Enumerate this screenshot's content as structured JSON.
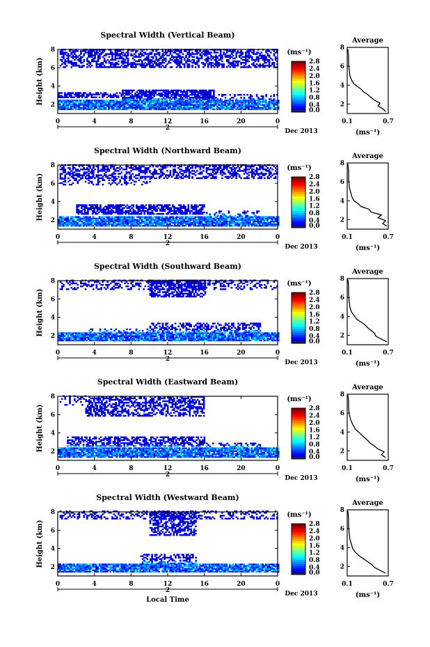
{
  "chart_data": [
    {
      "type": "heatmap",
      "title": "Spectral Width (Vertical Beam)",
      "ylabel": "Height (km)",
      "xticks": [
        "0",
        "4",
        "8",
        "12",
        "16",
        "20",
        "0"
      ],
      "xlim": [
        0,
        24
      ],
      "yticks": [
        "2",
        "4",
        "6",
        "8"
      ],
      "ylim": [
        1,
        8
      ],
      "date_day": "2",
      "date_label": "Dec 2013",
      "colorbar": {
        "unit": "(ms⁻¹)",
        "ticks": [
          "0.0",
          "0.4",
          "0.8",
          "1.2",
          "1.6",
          "2.0",
          "2.4",
          "2.8"
        ]
      },
      "profile": {
        "title": "Average",
        "xticks": [
          "0.1",
          "0.7"
        ],
        "xlim": [
          0.1,
          0.7
        ],
        "xlabel": "(ms⁻¹)",
        "yticks": [
          "2",
          "4",
          "6",
          "8"
        ],
        "ylim": [
          1,
          8
        ],
        "points": [
          [
            0.66,
            1.2
          ],
          [
            0.62,
            1.5
          ],
          [
            0.55,
            1.8
          ],
          [
            0.58,
            2.1
          ],
          [
            0.5,
            2.4
          ],
          [
            0.45,
            2.7
          ],
          [
            0.4,
            3.0
          ],
          [
            0.34,
            3.3
          ],
          [
            0.3,
            3.6
          ],
          [
            0.24,
            3.9
          ],
          [
            0.19,
            4.2
          ],
          [
            0.16,
            4.6
          ],
          [
            0.14,
            5.0
          ],
          [
            0.13,
            5.6
          ],
          [
            0.12,
            6.2
          ],
          [
            0.12,
            7.0
          ],
          [
            0.11,
            7.8
          ]
        ]
      },
      "texture": [
        {
          "t0": 0.2,
          "t1": 24,
          "h0": 6.0,
          "h1": 8.0,
          "d": 0.55
        },
        {
          "t0": 0.0,
          "t1": 24,
          "h0": 1.4,
          "h1": 2.5,
          "d": 0.92
        },
        {
          "t0": 0.0,
          "t1": 7.0,
          "h0": 2.7,
          "h1": 3.2,
          "d": 0.65
        },
        {
          "t0": 7.0,
          "t1": 17.0,
          "h0": 2.5,
          "h1": 3.5,
          "d": 0.75
        },
        {
          "t0": 17.0,
          "t1": 24,
          "h0": 2.5,
          "h1": 3.0,
          "d": 0.3
        }
      ]
    },
    {
      "type": "heatmap",
      "title": "Spectral Width (Northward Beam)",
      "ylabel": "Height (km)",
      "xticks": [
        "0",
        "4",
        "8",
        "12",
        "16",
        "20",
        "0"
      ],
      "xlim": [
        0,
        24
      ],
      "yticks": [
        "2",
        "4",
        "6",
        "8"
      ],
      "ylim": [
        1,
        8
      ],
      "date_day": "2",
      "date_label": "Dec 2013",
      "colorbar": {
        "unit": "(ms⁻¹)",
        "ticks": [
          "0.0",
          "0.4",
          "0.8",
          "1.2",
          "1.6",
          "2.0",
          "2.4",
          "2.8"
        ]
      },
      "profile": {
        "title": "Average",
        "xticks": [
          "0.1",
          "0.7"
        ],
        "xlim": [
          0.1,
          0.7
        ],
        "xlabel": "(ms⁻¹)",
        "yticks": [
          "2",
          "4",
          "6",
          "8"
        ],
        "ylim": [
          1,
          8
        ],
        "points": [
          [
            0.68,
            1.3
          ],
          [
            0.62,
            1.6
          ],
          [
            0.66,
            1.9
          ],
          [
            0.55,
            2.2
          ],
          [
            0.6,
            2.5
          ],
          [
            0.45,
            2.8
          ],
          [
            0.42,
            3.1
          ],
          [
            0.3,
            3.4
          ],
          [
            0.26,
            3.7
          ],
          [
            0.2,
            4.0
          ],
          [
            0.17,
            4.4
          ],
          [
            0.15,
            4.9
          ],
          [
            0.13,
            5.5
          ],
          [
            0.12,
            6.3
          ],
          [
            0.12,
            7.2
          ],
          [
            0.11,
            7.9
          ]
        ]
      },
      "texture": [
        {
          "t0": 0.2,
          "t1": 24,
          "h0": 6.5,
          "h1": 8.0,
          "d": 0.5
        },
        {
          "t0": 0.2,
          "t1": 10.0,
          "h0": 5.8,
          "h1": 6.5,
          "d": 0.25
        },
        {
          "t0": 0.0,
          "t1": 24,
          "h0": 1.3,
          "h1": 2.4,
          "d": 0.92
        },
        {
          "t0": 2.0,
          "t1": 16.0,
          "h0": 2.6,
          "h1": 3.6,
          "d": 0.7
        },
        {
          "t0": 16.0,
          "t1": 22.0,
          "h0": 2.4,
          "h1": 2.9,
          "d": 0.3
        }
      ]
    },
    {
      "type": "heatmap",
      "title": "Spectral Width (Southward Beam)",
      "ylabel": "Height (km)",
      "xticks": [
        "0",
        "4",
        "8",
        "12",
        "16",
        "20",
        "0"
      ],
      "xlim": [
        0,
        24
      ],
      "yticks": [
        "2",
        "4",
        "6",
        "8"
      ],
      "ylim": [
        1,
        8
      ],
      "date_day": "2",
      "date_label": "Dec 2013",
      "colorbar": {
        "unit": "(ms⁻¹)",
        "ticks": [
          "0.0",
          "0.4",
          "0.8",
          "1.2",
          "1.6",
          "2.0",
          "2.4",
          "2.8"
        ]
      },
      "profile": {
        "title": "Average",
        "xticks": [
          "0.1",
          "0.7"
        ],
        "xlim": [
          0.1,
          0.7
        ],
        "xlabel": "(ms⁻¹)",
        "yticks": [
          "2",
          "4",
          "6",
          "8"
        ],
        "ylim": [
          1,
          8
        ],
        "points": [
          [
            0.68,
            1.3
          ],
          [
            0.6,
            1.6
          ],
          [
            0.52,
            1.9
          ],
          [
            0.5,
            2.2
          ],
          [
            0.45,
            2.5
          ],
          [
            0.4,
            2.8
          ],
          [
            0.36,
            3.1
          ],
          [
            0.3,
            3.4
          ],
          [
            0.24,
            3.7
          ],
          [
            0.2,
            4.1
          ],
          [
            0.16,
            4.5
          ],
          [
            0.14,
            5.0
          ],
          [
            0.13,
            5.6
          ],
          [
            0.12,
            6.3
          ],
          [
            0.12,
            7.1
          ],
          [
            0.11,
            7.9
          ]
        ]
      },
      "texture": [
        {
          "t0": 0.2,
          "t1": 24,
          "h0": 7.0,
          "h1": 8.0,
          "d": 0.35
        },
        {
          "t0": 10.0,
          "t1": 16.0,
          "h0": 6.2,
          "h1": 8.0,
          "d": 0.6
        },
        {
          "t0": 0.0,
          "t1": 24,
          "h0": 1.4,
          "h1": 2.3,
          "d": 0.92
        },
        {
          "t0": 10.0,
          "t1": 22.0,
          "h0": 2.3,
          "h1": 3.3,
          "d": 0.55
        },
        {
          "t0": 3.0,
          "t1": 10.0,
          "h0": 2.3,
          "h1": 2.7,
          "d": 0.3
        }
      ]
    },
    {
      "type": "heatmap",
      "title": "Spectral Width (Eastward Beam)",
      "ylabel": "Height (km)",
      "xticks": [
        "0",
        "4",
        "8",
        "12",
        "16",
        "20",
        "0"
      ],
      "xlim": [
        0,
        24
      ],
      "yticks": [
        "2",
        "4",
        "6",
        "8"
      ],
      "ylim": [
        1,
        8
      ],
      "date_day": "2",
      "date_label": "Dec 2013",
      "colorbar": {
        "unit": "(ms⁻¹)",
        "ticks": [
          "0.0",
          "0.4",
          "0.8",
          "1.2",
          "1.6",
          "2.0",
          "2.4",
          "2.8"
        ]
      },
      "profile": {
        "title": "Average",
        "xticks": [
          "0.1",
          "0.7"
        ],
        "xlim": [
          0.1,
          0.7
        ],
        "xlabel": "(ms⁻¹)",
        "yticks": [
          "2",
          "4",
          "6",
          "8"
        ],
        "ylim": [
          1,
          8
        ],
        "points": [
          [
            0.66,
            1.3
          ],
          [
            0.6,
            1.6
          ],
          [
            0.64,
            1.9
          ],
          [
            0.55,
            2.2
          ],
          [
            0.5,
            2.5
          ],
          [
            0.44,
            2.8
          ],
          [
            0.4,
            3.1
          ],
          [
            0.34,
            3.5
          ],
          [
            0.28,
            3.9
          ],
          [
            0.22,
            4.3
          ],
          [
            0.18,
            4.8
          ],
          [
            0.15,
            5.3
          ],
          [
            0.13,
            5.9
          ],
          [
            0.12,
            6.6
          ],
          [
            0.12,
            7.3
          ],
          [
            0.11,
            7.9
          ]
        ]
      },
      "texture": [
        {
          "t0": 3.0,
          "t1": 16.0,
          "h0": 5.8,
          "h1": 8.0,
          "d": 0.55
        },
        {
          "t0": 0.2,
          "t1": 3.0,
          "h0": 7.0,
          "h1": 8.0,
          "d": 0.2
        },
        {
          "t0": 0.0,
          "t1": 24,
          "h0": 1.3,
          "h1": 2.3,
          "d": 0.92
        },
        {
          "t0": 1.0,
          "t1": 16.0,
          "h0": 2.5,
          "h1": 3.5,
          "d": 0.6
        },
        {
          "t0": 16.0,
          "t1": 22.0,
          "h0": 2.3,
          "h1": 2.8,
          "d": 0.3
        }
      ]
    },
    {
      "type": "heatmap",
      "title": "Spectral Width (Westward Beam)",
      "ylabel": "Height (km)",
      "xlabel": "Local Time",
      "xticks": [
        "0",
        "4",
        "8",
        "12",
        "16",
        "20",
        "0"
      ],
      "xlim": [
        0,
        24
      ],
      "yticks": [
        "2",
        "4",
        "6",
        "8"
      ],
      "ylim": [
        1,
        8
      ],
      "date_day": "2",
      "date_label": "Dec 2013",
      "colorbar": {
        "unit": "(ms⁻¹)",
        "ticks": [
          "0.0",
          "0.4",
          "0.8",
          "1.2",
          "1.6",
          "2.0",
          "2.4",
          "2.8"
        ]
      },
      "profile": {
        "title": "Average",
        "xticks": [
          "0.1",
          "0.7"
        ],
        "xlim": [
          0.1,
          0.7
        ],
        "xlabel": "(ms⁻¹)",
        "yticks": [
          "2",
          "4",
          "6",
          "8"
        ],
        "ylim": [
          1,
          8
        ],
        "points": [
          [
            0.66,
            1.3
          ],
          [
            0.58,
            1.6
          ],
          [
            0.5,
            1.9
          ],
          [
            0.46,
            2.2
          ],
          [
            0.4,
            2.5
          ],
          [
            0.34,
            2.8
          ],
          [
            0.28,
            3.1
          ],
          [
            0.22,
            3.5
          ],
          [
            0.18,
            3.9
          ],
          [
            0.16,
            4.4
          ],
          [
            0.14,
            4.9
          ],
          [
            0.13,
            5.5
          ],
          [
            0.12,
            6.2
          ],
          [
            0.12,
            7.0
          ],
          [
            0.11,
            7.9
          ]
        ]
      },
      "texture": [
        {
          "t0": 0.2,
          "t1": 24,
          "h0": 7.2,
          "h1": 8.0,
          "d": 0.35
        },
        {
          "t0": 10.0,
          "t1": 15.0,
          "h0": 5.4,
          "h1": 8.0,
          "d": 0.55
        },
        {
          "t0": 0.0,
          "t1": 24,
          "h0": 1.4,
          "h1": 2.2,
          "d": 0.92
        },
        {
          "t0": 9.0,
          "t1": 15.0,
          "h0": 2.3,
          "h1": 3.3,
          "d": 0.5
        }
      ]
    }
  ]
}
